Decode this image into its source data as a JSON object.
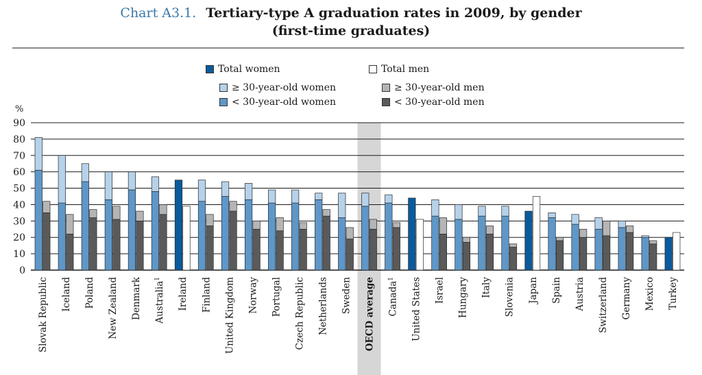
{
  "title": {
    "label": "Chart A3.1.",
    "text": "Tertiary-type A graduation rates in 2009, by gender",
    "subtitle": "(first-time graduates)"
  },
  "legend": {
    "total_women": "Total women",
    "total_men": "Total men",
    "older_women": "≥ 30-year-old women",
    "older_men": "≥ 30-year-old men",
    "young_women": "< 30-year-old women",
    "young_men": "< 30-year-old men"
  },
  "colors": {
    "total_women": "#0b5a9c",
    "total_men": "#ffffff",
    "older_women": "#b6d1ea",
    "young_women": "#5e97c8",
    "older_men": "#b5b5b5",
    "young_men": "#5a5a5a",
    "highlight": "#d6d6d6"
  },
  "chart_data": {
    "type": "bar",
    "ylabel": "%",
    "ylim": [
      0,
      90
    ],
    "yticks": [
      0,
      10,
      20,
      30,
      40,
      50,
      60,
      70,
      80,
      90
    ],
    "grid": true,
    "highlight_category": "OECD average",
    "categories": [
      "Slovak Republic",
      "Iceland",
      "Poland",
      "New Zealand",
      "Denmark",
      "Australia",
      "Ireland",
      "Finland",
      "United Kingdom",
      "Norway",
      "Portugal",
      "Czech Republic",
      "Netherlands",
      "Sweden",
      "OECD average",
      "Canada",
      "United States",
      "Israel",
      "Hungary",
      "Italy",
      "Slovenia",
      "Japan",
      "Spain",
      "Austria",
      "Switzerland",
      "Germany",
      "Mexico",
      "Turkey"
    ],
    "superscripts": [
      "",
      "",
      "",
      "",
      "",
      "1",
      "",
      "",
      "",
      "",
      "",
      "",
      "",
      "",
      "",
      "1",
      "",
      "",
      "",
      "",
      "",
      "",
      "",
      "",
      "",
      "",
      "",
      ""
    ],
    "women": [
      {
        "young": 61,
        "total": 81,
        "has_split": true
      },
      {
        "young": 41,
        "total": 70,
        "has_split": true
      },
      {
        "young": 54,
        "total": 65,
        "has_split": true
      },
      {
        "young": 43,
        "total": 60,
        "has_split": true
      },
      {
        "young": 49,
        "total": 60,
        "has_split": true
      },
      {
        "young": 48,
        "total": 57,
        "has_split": true
      },
      {
        "young": null,
        "total": 55,
        "has_split": false
      },
      {
        "young": 42,
        "total": 55,
        "has_split": true
      },
      {
        "young": 45,
        "total": 54,
        "has_split": true
      },
      {
        "young": 43,
        "total": 53,
        "has_split": true
      },
      {
        "young": 41,
        "total": 49,
        "has_split": true
      },
      {
        "young": 41,
        "total": 49,
        "has_split": true
      },
      {
        "young": 43,
        "total": 47,
        "has_split": true
      },
      {
        "young": 32,
        "total": 47,
        "has_split": true
      },
      {
        "young": 39,
        "total": 47,
        "has_split": true
      },
      {
        "young": 41,
        "total": 46,
        "has_split": true
      },
      {
        "young": null,
        "total": 44,
        "has_split": false
      },
      {
        "young": 33,
        "total": 43,
        "has_split": true
      },
      {
        "young": 31,
        "total": 40,
        "has_split": true
      },
      {
        "young": 33,
        "total": 39,
        "has_split": true
      },
      {
        "young": 33,
        "total": 39,
        "has_split": true
      },
      {
        "young": null,
        "total": 36,
        "has_split": false
      },
      {
        "young": 32,
        "total": 35,
        "has_split": true
      },
      {
        "young": 28,
        "total": 34,
        "has_split": true
      },
      {
        "young": 25,
        "total": 32,
        "has_split": true
      },
      {
        "young": 26,
        "total": 30,
        "has_split": true
      },
      {
        "young": 20,
        "total": 21,
        "has_split": true
      },
      {
        "young": null,
        "total": 20,
        "has_split": false
      }
    ],
    "men": [
      {
        "young": 35,
        "total": 42,
        "has_split": true
      },
      {
        "young": 22,
        "total": 34,
        "has_split": true
      },
      {
        "young": 32,
        "total": 37,
        "has_split": true
      },
      {
        "young": 31,
        "total": 39,
        "has_split": true
      },
      {
        "young": 30,
        "total": 36,
        "has_split": true
      },
      {
        "young": 34,
        "total": 40,
        "has_split": true
      },
      {
        "young": null,
        "total": 39,
        "has_split": false
      },
      {
        "young": 27,
        "total": 34,
        "has_split": true
      },
      {
        "young": 36,
        "total": 42,
        "has_split": true
      },
      {
        "young": 25,
        "total": 30,
        "has_split": true
      },
      {
        "young": 24,
        "total": 32,
        "has_split": true
      },
      {
        "young": 25,
        "total": 29,
        "has_split": true
      },
      {
        "young": 33,
        "total": 37,
        "has_split": true
      },
      {
        "young": 19,
        "total": 26,
        "has_split": true
      },
      {
        "young": 25,
        "total": 31,
        "has_split": true
      },
      {
        "young": 26,
        "total": 29,
        "has_split": true
      },
      {
        "young": null,
        "total": 31,
        "has_split": false
      },
      {
        "young": 22,
        "total": 32,
        "has_split": true
      },
      {
        "young": 17,
        "total": 20,
        "has_split": true
      },
      {
        "young": 22,
        "total": 27,
        "has_split": true
      },
      {
        "young": 14,
        "total": 16,
        "has_split": true
      },
      {
        "young": null,
        "total": 45,
        "has_split": false
      },
      {
        "young": 18,
        "total": 20,
        "has_split": true
      },
      {
        "young": 20,
        "total": 25,
        "has_split": true
      },
      {
        "young": 21,
        "total": 30,
        "has_split": true
      },
      {
        "young": 23,
        "total": 27,
        "has_split": true
      },
      {
        "young": 16,
        "total": 18,
        "has_split": true
      },
      {
        "young": null,
        "total": 23,
        "has_split": false
      }
    ]
  }
}
